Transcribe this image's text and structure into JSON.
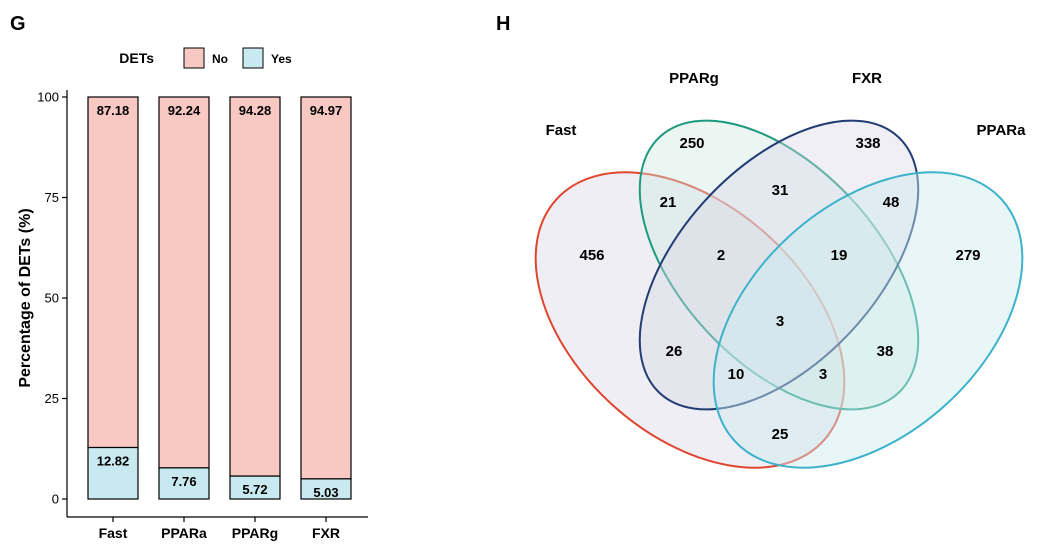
{
  "panel_g": "G",
  "panel_h": "H",
  "chart_data": [
    {
      "type": "bar",
      "stacked": true,
      "categories": [
        "Fast",
        "PPARa",
        "PPARg",
        "FXR"
      ],
      "series": [
        {
          "name": "No",
          "values": [
            87.18,
            92.24,
            94.28,
            94.97
          ],
          "color": "#F8C8C2"
        },
        {
          "name": "Yes",
          "values": [
            12.82,
            7.76,
            5.72,
            5.03
          ],
          "color": "#C9E9F0"
        }
      ],
      "value_labels": {
        "No": [
          "87.18",
          "92.24",
          "94.28",
          "94.97"
        ],
        "Yes": [
          "12.82",
          "7.76",
          "5.72",
          "5.03"
        ]
      },
      "ylabel": "Percentage of DETs (%)",
      "xlabel": "",
      "ylim": [
        0,
        100
      ],
      "yticks": [
        0,
        25,
        50,
        75,
        100
      ],
      "legend": {
        "title": "DETs",
        "position": "top"
      },
      "grid": false
    },
    {
      "type": "venn",
      "sets": [
        {
          "name": "Fast",
          "color": "#E0452F"
        },
        {
          "name": "PPARg",
          "color": "#1E9A7E"
        },
        {
          "name": "FXR",
          "color": "#243C74"
        },
        {
          "name": "PPARa",
          "color": "#3CB2CB"
        }
      ],
      "regions": [
        {
          "sets": [
            "Fast"
          ],
          "count": "456"
        },
        {
          "sets": [
            "PPARg"
          ],
          "count": "250"
        },
        {
          "sets": [
            "FXR"
          ],
          "count": "338"
        },
        {
          "sets": [
            "PPARa"
          ],
          "count": "279"
        },
        {
          "sets": [
            "Fast",
            "PPARg"
          ],
          "count": "21"
        },
        {
          "sets": [
            "PPARg",
            "FXR"
          ],
          "count": "31"
        },
        {
          "sets": [
            "FXR",
            "PPARa"
          ],
          "count": "48"
        },
        {
          "sets": [
            "Fast",
            "PPARg",
            "FXR"
          ],
          "count": "2"
        },
        {
          "sets": [
            "PPARg",
            "FXR",
            "PPARa"
          ],
          "count": "19"
        },
        {
          "sets": [
            "Fast",
            "PPARg",
            "FXR",
            "PPARa"
          ],
          "count": "3"
        },
        {
          "sets": [
            "Fast",
            "FXR"
          ],
          "count": "26"
        },
        {
          "sets": [
            "PPARg",
            "PPARa"
          ],
          "count": "38"
        },
        {
          "sets": [
            "Fast",
            "FXR",
            "PPARa"
          ],
          "count": "10"
        },
        {
          "sets": [
            "Fast",
            "PPARg",
            "PPARa"
          ],
          "count": "3"
        },
        {
          "sets": [
            "Fast",
            "PPARa"
          ],
          "count": "25"
        }
      ]
    }
  ]
}
